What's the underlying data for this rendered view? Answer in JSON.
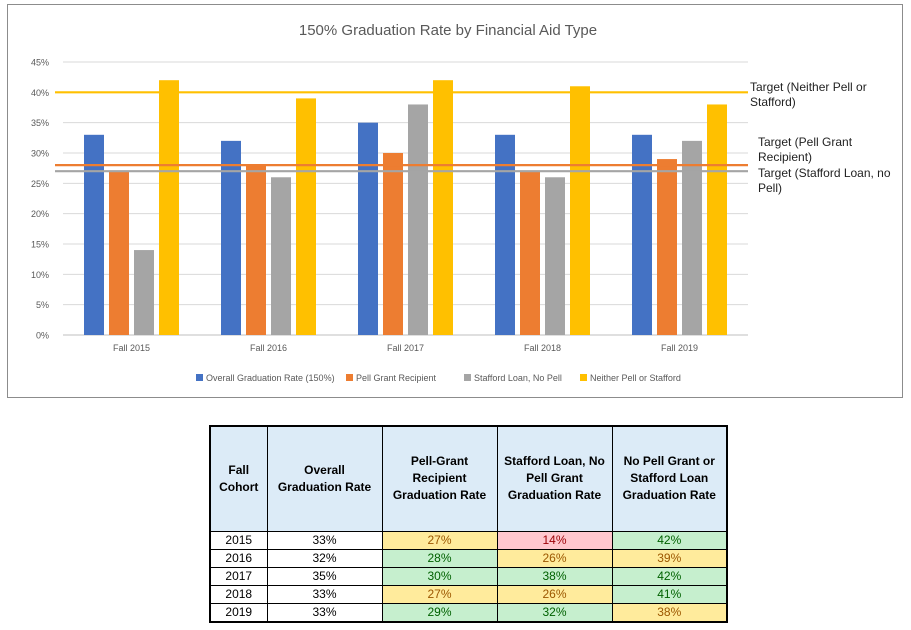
{
  "chart_data": {
    "type": "bar",
    "title": "150% Graduation Rate by Financial Aid Type",
    "categories": [
      "Fall 2015",
      "Fall 2016",
      "Fall 2017",
      "Fall 2018",
      "Fall 2019"
    ],
    "series": [
      {
        "name": "Overall Graduation Rate (150%)",
        "color": "#4472c4",
        "values": [
          33,
          32,
          35,
          33,
          33
        ]
      },
      {
        "name": "Pell Grant Recipient",
        "color": "#ed7d31",
        "values": [
          27,
          28,
          30,
          27,
          29
        ]
      },
      {
        "name": "Stafford Loan, No Pell",
        "color": "#a5a5a5",
        "values": [
          14,
          26,
          38,
          26,
          32
        ]
      },
      {
        "name": "Neither Pell or Stafford",
        "color": "#ffc000",
        "values": [
          42,
          39,
          42,
          41,
          38
        ]
      }
    ],
    "yticks": [
      0,
      5,
      10,
      15,
      20,
      25,
      30,
      35,
      40,
      45
    ],
    "ytick_labels": [
      "0%",
      "5%",
      "10%",
      "15%",
      "20%",
      "25%",
      "30%",
      "35%",
      "40%",
      "45%"
    ],
    "ylim": [
      0,
      45
    ],
    "xlabel": "",
    "ylabel": "",
    "grid": true,
    "legend_position": "bottom",
    "target_lines": [
      {
        "label": "Target (Neither Pell or Stafford)",
        "value": 40,
        "color": "#ffc000"
      },
      {
        "label": "Target (Pell Grant Recipient)",
        "value": 28,
        "color": "#ed7d31"
      },
      {
        "label": "Target (Stafford Loan, no Pell)",
        "value": 27,
        "color": "#a5a5a5"
      }
    ]
  },
  "table": {
    "headers": [
      "Fall Cohort",
      "Overall Graduation Rate",
      "Pell-Grant Recipient Graduation Rate",
      "Stafford Loan, No Pell Grant Graduation Rate",
      "No Pell Grant or Stafford Loan Graduation Rate"
    ],
    "rows": [
      {
        "cohort": "2015",
        "overall": "33%",
        "pell": "27%",
        "stafford": "14%",
        "neither": "42%"
      },
      {
        "cohort": "2016",
        "overall": "32%",
        "pell": "28%",
        "stafford": "26%",
        "neither": "39%"
      },
      {
        "cohort": "2017",
        "overall": "35%",
        "pell": "30%",
        "stafford": "38%",
        "neither": "42%"
      },
      {
        "cohort": "2018",
        "overall": "33%",
        "pell": "27%",
        "stafford": "26%",
        "neither": "41%"
      },
      {
        "cohort": "2019",
        "overall": "33%",
        "pell": "29%",
        "stafford": "32%",
        "neither": "38%"
      }
    ],
    "status": {
      "pell": [
        "yellow",
        "green",
        "green",
        "yellow",
        "green"
      ],
      "stafford": [
        "red",
        "yellow",
        "green",
        "yellow",
        "green"
      ],
      "neither": [
        "green",
        "yellow",
        "green",
        "green",
        "yellow"
      ]
    }
  }
}
